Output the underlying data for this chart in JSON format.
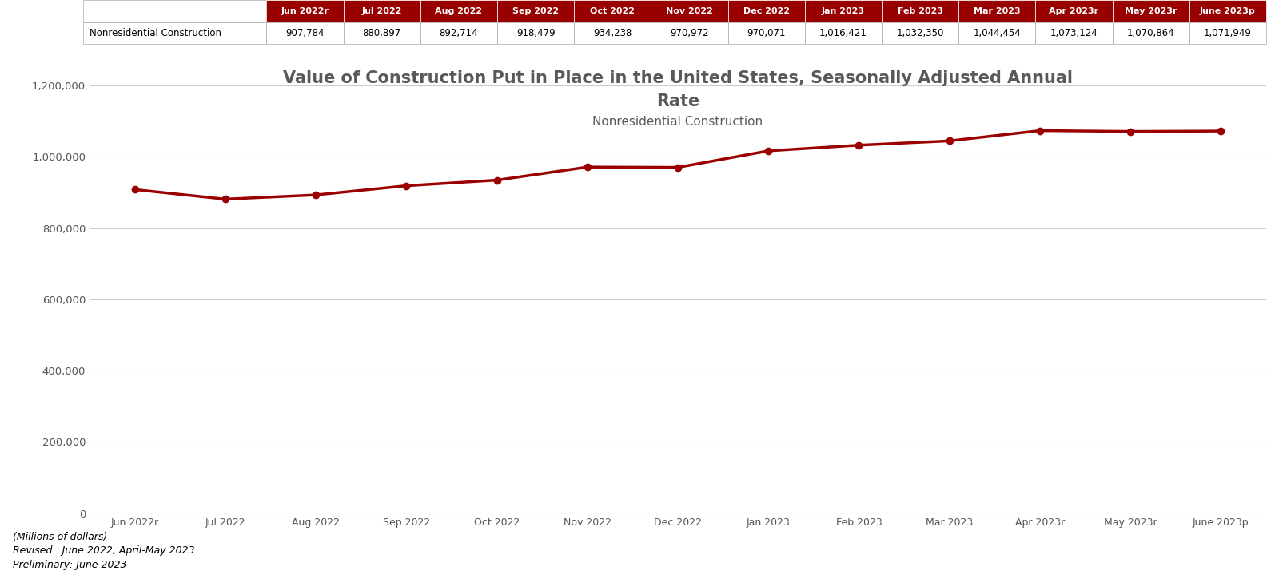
{
  "title_line1": "Value of Construction Put in Place in the United States, Seasonally Adjusted Annual",
  "title_line2": "Rate",
  "subtitle": "Nonresidential Construction",
  "x_labels": [
    "Jun 2022r",
    "Jul 2022",
    "Aug 2022",
    "Sep 2022",
    "Oct 2022",
    "Nov 2022",
    "Dec 2022",
    "Jan 2023",
    "Feb 2023",
    "Mar 2023",
    "Apr 2023r",
    "May 2023r",
    "June 2023p"
  ],
  "values": [
    907784,
    880897,
    892714,
    918479,
    934238,
    970972,
    970071,
    1016421,
    1032350,
    1044454,
    1073124,
    1070864,
    1071949
  ],
  "line_color": "#9B0000",
  "marker_size": 6,
  "line_width": 2.5,
  "ylim": [
    0,
    1300000
  ],
  "yticks": [
    0,
    200000,
    400000,
    600000,
    800000,
    1000000,
    1200000
  ],
  "ytick_labels": [
    "0",
    "200,000",
    "400,000",
    "600,000",
    "800,000",
    "1,000,000",
    "1,200,000"
  ],
  "grid_color": "#cccccc",
  "background_color": "#ffffff",
  "title_color": "#595959",
  "subtitle_color": "#595959",
  "table_header_bg": "#990000",
  "table_row_label": "Nonresidential Construction",
  "table_data": [
    "907,784",
    "880,897",
    "892,714",
    "918,479",
    "934,238",
    "970,972",
    "970,071",
    "1,016,421",
    "1,032,350",
    "1,044,454",
    "1,073,124",
    "1,070,864",
    "1,071,949"
  ],
  "table_col_headers": [
    "Jun 2022r",
    "Jul 2022",
    "Aug 2022",
    "Sep 2022",
    "Oct 2022",
    "Nov 2022",
    "Dec 2022",
    "Jan 2023",
    "Feb 2023",
    "Mar 2023",
    "Apr 2023r",
    "May 2023r",
    "June 2023p"
  ],
  "footnote1": "(Millions of dollars)",
  "footnote2": "Revised:  June 2022, April-May 2023",
  "footnote3": "Preliminary: June 2023"
}
